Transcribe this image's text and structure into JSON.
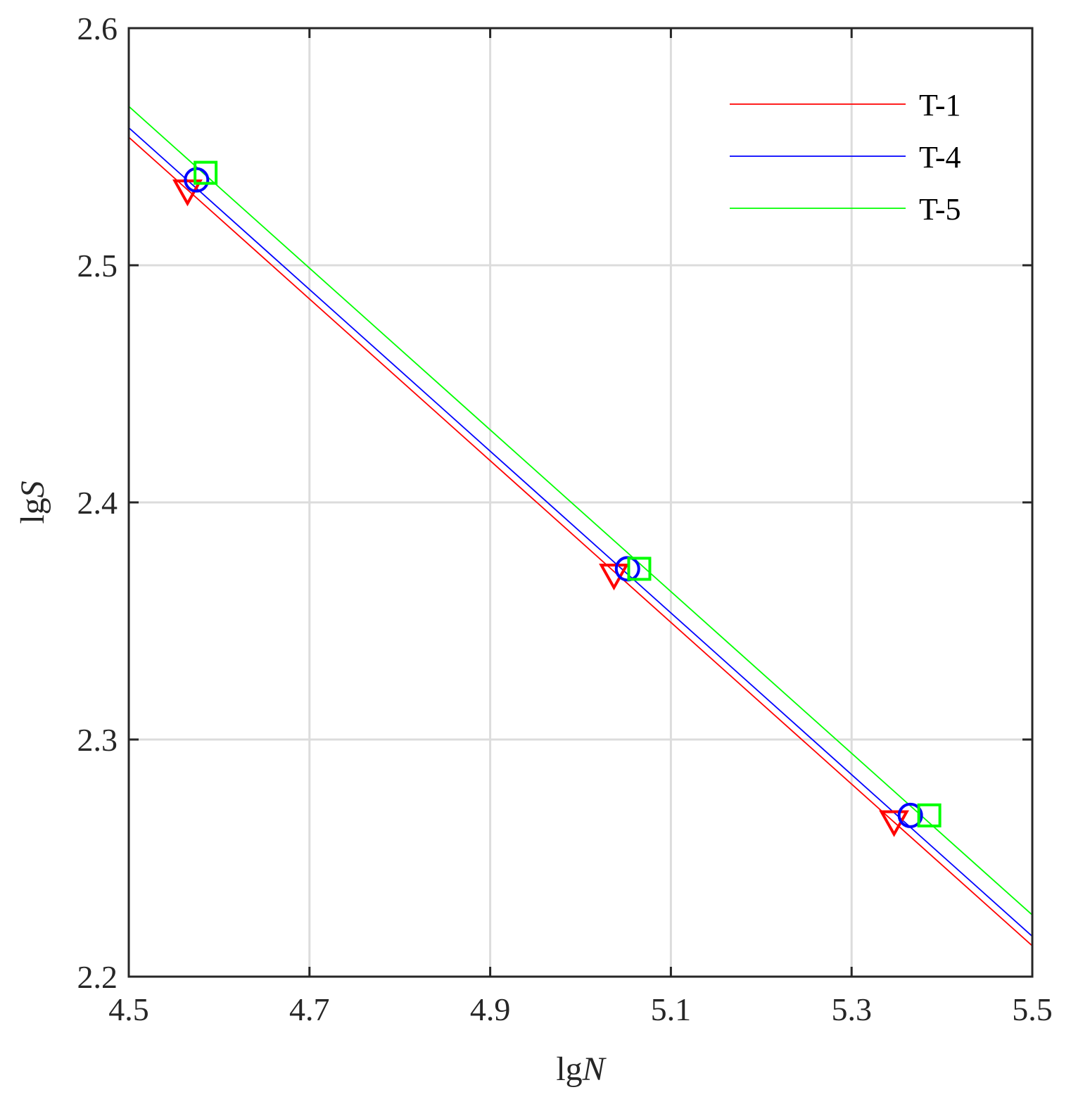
{
  "chart_data": {
    "type": "line",
    "xlabel": {
      "prefix": "lg",
      "var": "N"
    },
    "ylabel": {
      "prefix": "lg",
      "var": "S"
    },
    "xlim": [
      4.5,
      5.5
    ],
    "ylim": [
      2.2,
      2.6
    ],
    "xticks": [
      "4.5",
      "4.7",
      "4.9",
      "5.1",
      "5.3",
      "5.5"
    ],
    "yticks": [
      "2.2",
      "2.3",
      "2.4",
      "2.5",
      "2.6"
    ],
    "grid": true,
    "legend_position": "top-right",
    "series": [
      {
        "name": "T-1",
        "color": "#ff0000",
        "marker": "triangle-down",
        "line": {
          "x": [
            4.5,
            5.5
          ],
          "y": [
            2.554,
            2.213
          ]
        },
        "points": [
          {
            "x": 4.565,
            "y": 2.532
          },
          {
            "x": 5.037,
            "y": 2.37
          },
          {
            "x": 5.347,
            "y": 2.266
          }
        ]
      },
      {
        "name": "T-4",
        "color": "#0000ff",
        "marker": "circle",
        "line": {
          "x": [
            4.5,
            5.5
          ],
          "y": [
            2.558,
            2.217
          ]
        },
        "points": [
          {
            "x": 4.575,
            "y": 2.536
          },
          {
            "x": 5.052,
            "y": 2.372
          },
          {
            "x": 5.365,
            "y": 2.268
          }
        ]
      },
      {
        "name": "T-5",
        "color": "#00ff00",
        "marker": "square",
        "line": {
          "x": [
            4.5,
            5.5
          ],
          "y": [
            2.567,
            2.226
          ]
        },
        "points": [
          {
            "x": 4.585,
            "y": 2.539
          },
          {
            "x": 5.065,
            "y": 2.372
          },
          {
            "x": 5.386,
            "y": 2.268
          }
        ]
      }
    ]
  }
}
